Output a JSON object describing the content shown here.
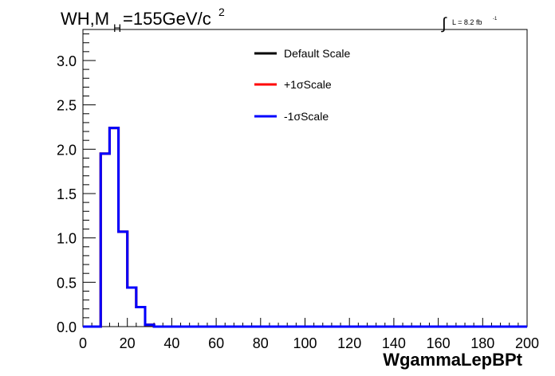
{
  "chart_data": {
    "type": "line",
    "title": {
      "main": "WH,M",
      "sub": "H",
      "rest": "=155GeV/c",
      "sup": "2"
    },
    "luminosity": {
      "integral": "∫",
      "text": "L = 8.2 fb",
      "sup": "-1"
    },
    "xlabel": "WgammaLepBPt",
    "ylabel": "",
    "xlim": [
      0,
      200
    ],
    "ylim": [
      0,
      3.35
    ],
    "x_ticks": [
      "0",
      "20",
      "40",
      "60",
      "80",
      "100",
      "120",
      "140",
      "160",
      "180",
      "200"
    ],
    "y_ticks": [
      "0.0",
      "0.5",
      "1.0",
      "1.5",
      "2.0",
      "2.5",
      "3.0"
    ],
    "bin_width": 4,
    "bin_edges_start": 0,
    "legend_position": "top-center",
    "series": [
      {
        "name": "Default Scale",
        "color": "#000000",
        "values": [
          0,
          0,
          1.95,
          2.24,
          1.07,
          0.44,
          0.22,
          0.02,
          0,
          0,
          0,
          0,
          0,
          0,
          0,
          0,
          0,
          0,
          0,
          0,
          0,
          0,
          0,
          0,
          0,
          0,
          0,
          0,
          0,
          0,
          0,
          0,
          0,
          0,
          0,
          0,
          0,
          0,
          0,
          0,
          0,
          0,
          0,
          0,
          0,
          0,
          0,
          0,
          0,
          0
        ]
      },
      {
        "name": "+1σScale",
        "color": "#ff0000",
        "values": [
          0,
          0,
          1.95,
          2.24,
          1.07,
          0.44,
          0.22,
          0.02,
          0,
          0,
          0,
          0,
          0,
          0,
          0,
          0,
          0,
          0,
          0,
          0,
          0,
          0,
          0,
          0,
          0,
          0,
          0,
          0,
          0,
          0,
          0,
          0,
          0,
          0,
          0,
          0,
          0,
          0,
          0,
          0,
          0,
          0,
          0,
          0,
          0,
          0,
          0,
          0,
          0,
          0
        ]
      },
      {
        "name": "-1σScale",
        "color": "#0000ff",
        "values": [
          0,
          0,
          1.95,
          2.24,
          1.07,
          0.44,
          0.22,
          0.02,
          0,
          0,
          0,
          0,
          0,
          0,
          0,
          0,
          0,
          0,
          0,
          0,
          0,
          0,
          0,
          0,
          0,
          0,
          0,
          0,
          0,
          0,
          0,
          0,
          0,
          0,
          0,
          0,
          0,
          0,
          0,
          0,
          0,
          0,
          0,
          0,
          0,
          0,
          0,
          0,
          0,
          0
        ]
      }
    ]
  }
}
